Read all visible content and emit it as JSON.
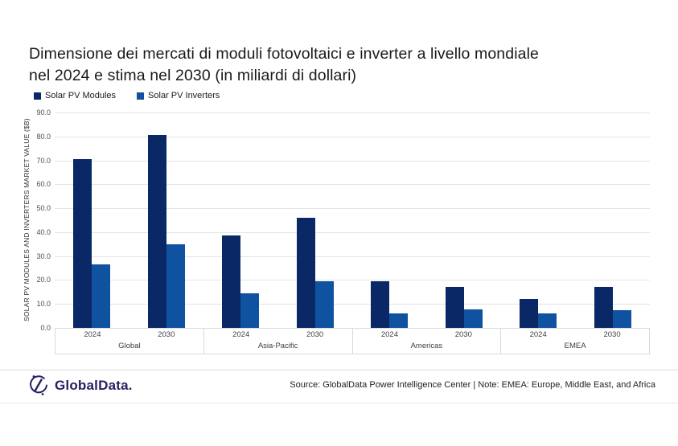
{
  "title": {
    "line1": "Dimensione dei mercati di moduli fotovoltaici e inverter a livello mondiale",
    "line2": "nel 2024 e stima nel 2030 (in miliardi di dollari)"
  },
  "legend": {
    "items": [
      {
        "label": "Solar PV Modules",
        "color": "#0A2766"
      },
      {
        "label": "Solar PV Inverters",
        "color": "#0F529F"
      }
    ]
  },
  "footer": {
    "logo_text": "GlobalData.",
    "logo_color": "#262262",
    "source_text": "Source: GlobalData Power Intelligence Center | Note: EMEA: Europe, Middle East, and Africa"
  },
  "chart_data": {
    "type": "bar",
    "title": "Dimensione dei mercati di moduli fotovoltaici e inverter a livello mondiale nel 2024 e stima nel 2030 (in miliardi di dollari)",
    "ylabel": "SOLAR PV MODULES AND INVERTERS MARKET VALUE ($B)",
    "ylim": [
      0,
      90
    ],
    "ytick_step": 10,
    "yticks": [
      "0.0",
      "10.0",
      "20.0",
      "30.0",
      "40.0",
      "50.0",
      "60.0",
      "70.0",
      "80.0",
      "90.0"
    ],
    "grid": true,
    "legend_position": "top-left",
    "series": [
      {
        "name": "Solar PV Modules",
        "color": "#0A2766"
      },
      {
        "name": "Solar PV Inverters",
        "color": "#0F529F"
      }
    ],
    "groups": [
      {
        "label": "Global",
        "clusters": [
          {
            "label": "2024",
            "values": [
              70.5,
              26.5
            ]
          },
          {
            "label": "2030",
            "values": [
              80.5,
              35.0
            ]
          }
        ]
      },
      {
        "label": "Asia-Pacific",
        "clusters": [
          {
            "label": "2024",
            "values": [
              38.7,
              14.5
            ]
          },
          {
            "label": "2030",
            "values": [
              46.0,
              19.6
            ]
          }
        ]
      },
      {
        "label": "Americas",
        "clusters": [
          {
            "label": "2024",
            "values": [
              19.5,
              5.9
            ]
          },
          {
            "label": "2030",
            "values": [
              17.2,
              7.7
            ]
          }
        ]
      },
      {
        "label": "EMEA",
        "clusters": [
          {
            "label": "2024",
            "values": [
              12.0,
              6.1
            ]
          },
          {
            "label": "2030",
            "values": [
              17.1,
              7.5
            ]
          }
        ]
      }
    ]
  }
}
